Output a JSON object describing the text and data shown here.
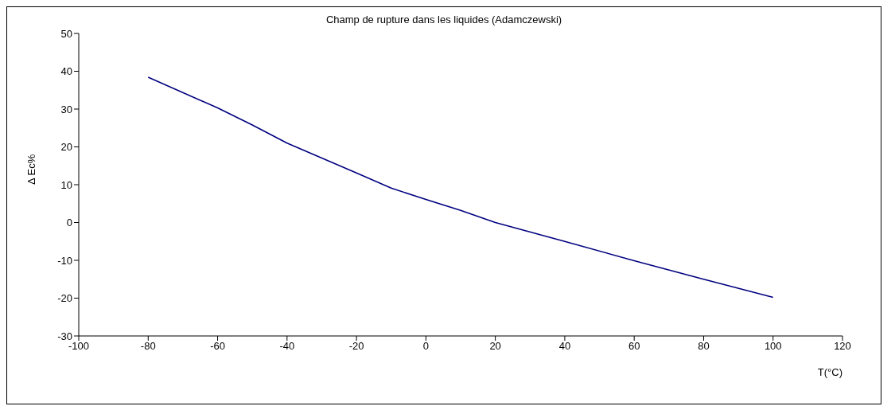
{
  "chart_data": {
    "type": "line",
    "title": "Champ de rupture dans les liquides (Adamczewski)",
    "xlabel": "T(°C)",
    "ylabel": "Δ Ec%",
    "x": [
      -80,
      -60,
      -50,
      -40,
      -20,
      -10,
      0,
      10,
      20,
      40,
      60,
      80,
      100
    ],
    "series": [
      {
        "color": "#000080",
        "values": [
          38.4,
          30.3,
          25.8,
          21.0,
          13.1,
          9.1,
          6.1,
          3.2,
          0,
          -5.0,
          -10.1,
          -15.0,
          -19.8
        ]
      }
    ],
    "xlim": [
      -100,
      120
    ],
    "xticks": [
      -100,
      -80,
      -60,
      -40,
      -20,
      0,
      20,
      40,
      60,
      80,
      100,
      120
    ],
    "ylim": [
      -30,
      50
    ],
    "yticks": [
      -30,
      -20,
      -10,
      0,
      10,
      20,
      30,
      40,
      50
    ],
    "grid": false,
    "legend": false,
    "marker": "none",
    "line_style": "solid"
  }
}
